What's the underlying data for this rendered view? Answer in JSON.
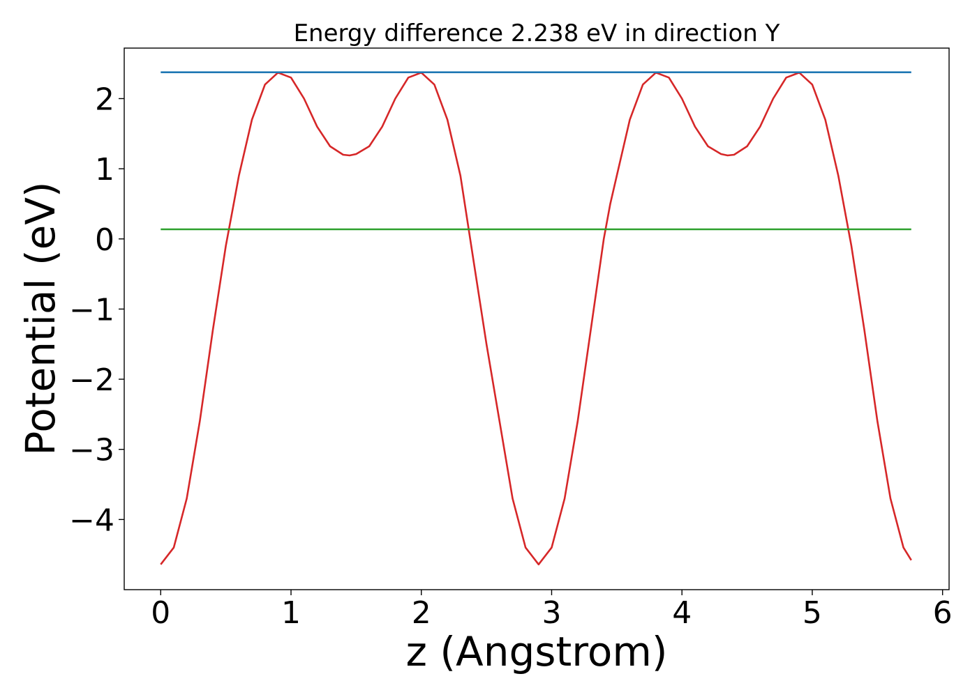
{
  "chart_data": {
    "type": "line",
    "title": "Energy difference 2.238 eV in direction Y",
    "xlabel": "z (Angstrom)",
    "ylabel": "Potential (eV)",
    "xlim": [
      -0.28,
      6.05
    ],
    "ylim": [
      -5.0,
      2.72
    ],
    "xticks": [
      0,
      1,
      2,
      3,
      4,
      5,
      6
    ],
    "yticks": [
      -4,
      -3,
      -2,
      -1,
      0,
      1,
      2
    ],
    "grid": false,
    "legend": "none",
    "series": [
      {
        "color": "#d62728",
        "x": [
          0.0,
          0.1,
          0.2,
          0.3,
          0.4,
          0.5,
          0.55,
          0.6,
          0.7,
          0.8,
          0.9,
          1.0,
          1.1,
          1.2,
          1.3,
          1.4,
          1.45,
          1.5,
          1.6,
          1.7,
          1.8,
          1.9,
          2.0,
          2.1,
          2.2,
          2.3,
          2.4,
          2.5,
          2.6,
          2.7,
          2.8,
          2.9,
          3.0,
          3.1,
          3.2,
          3.3,
          3.4,
          3.45,
          3.5,
          3.6,
          3.7,
          3.8,
          3.9,
          4.0,
          4.1,
          4.2,
          4.3,
          4.35,
          4.4,
          4.5,
          4.6,
          4.7,
          4.8,
          4.9,
          5.0,
          5.1,
          5.2,
          5.3,
          5.4,
          5.5,
          5.6,
          5.7,
          5.76
        ],
        "y": [
          -4.64,
          -4.4,
          -3.7,
          -2.6,
          -1.3,
          -0.1,
          0.4,
          0.9,
          1.7,
          2.2,
          2.37,
          2.3,
          2.0,
          1.6,
          1.32,
          1.2,
          1.19,
          1.21,
          1.32,
          1.6,
          2.0,
          2.3,
          2.37,
          2.2,
          1.7,
          0.9,
          -0.3,
          -1.5,
          -2.6,
          -3.7,
          -4.4,
          -4.64,
          -4.4,
          -3.7,
          -2.6,
          -1.3,
          0.0,
          0.5,
          0.9,
          1.7,
          2.2,
          2.37,
          2.3,
          2.0,
          1.6,
          1.32,
          1.21,
          1.19,
          1.2,
          1.32,
          1.6,
          2.0,
          2.3,
          2.37,
          2.2,
          1.7,
          0.9,
          -0.1,
          -1.3,
          -2.6,
          -3.7,
          -4.4,
          -4.58
        ]
      },
      {
        "color": "#1f77b4",
        "x": [
          0.0,
          5.76
        ],
        "y": [
          2.375,
          2.375
        ]
      },
      {
        "color": "#2ca02c",
        "x": [
          0.0,
          5.76
        ],
        "y": [
          0.137,
          0.137
        ]
      }
    ]
  }
}
